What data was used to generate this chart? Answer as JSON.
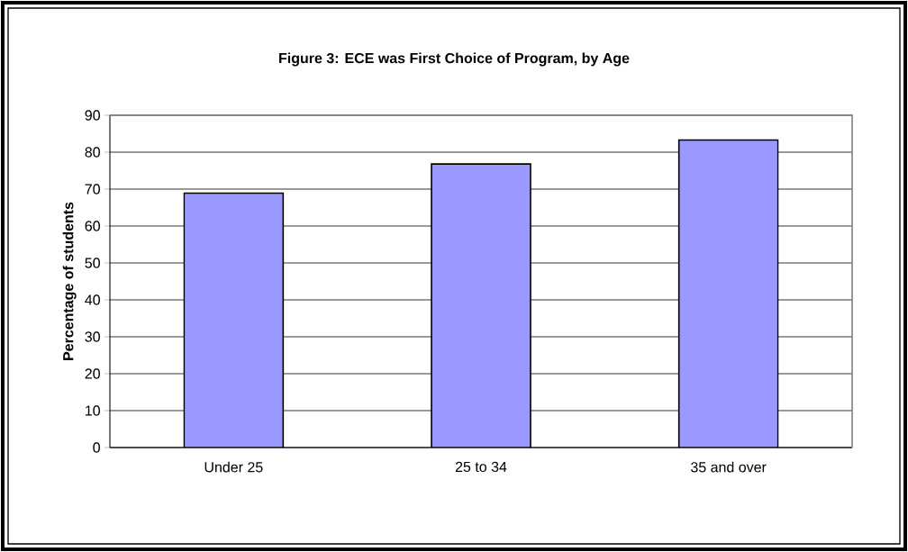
{
  "chart_data": {
    "type": "bar",
    "title": "Figure 3: ECE was First Choice of Program, by Age",
    "ylabel": "Percentage of students",
    "categories": [
      "Under 25",
      "25 to 34",
      "35 and over"
    ],
    "values": [
      68.9,
      76.8,
      83.3
    ],
    "color": "#9999ff",
    "ylim": [
      0,
      90
    ],
    "yticks": [
      0,
      10,
      20,
      30,
      40,
      50,
      60,
      70,
      80,
      90
    ],
    "grid": "y"
  }
}
